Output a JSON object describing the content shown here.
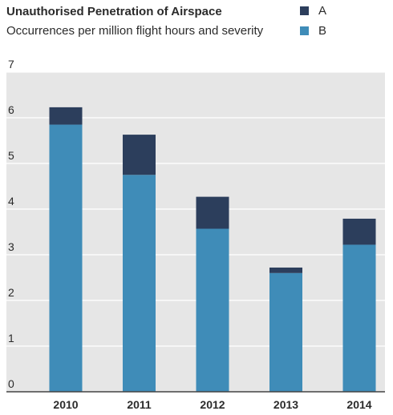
{
  "chart_data": {
    "type": "bar",
    "stacked": true,
    "title": "Unauthorised Penetration of Airspace",
    "subtitle": "Occurrences per million flight hours and severity",
    "xlabel": "",
    "ylabel": "",
    "categories": [
      "2010",
      "2011",
      "2012",
      "2013",
      "2014"
    ],
    "series": [
      {
        "name": "B",
        "color": "#3f8cb8",
        "values": [
          5.85,
          4.75,
          3.57,
          2.6,
          3.22
        ]
      },
      {
        "name": "A",
        "color": "#2c3e5c",
        "values": [
          0.38,
          0.88,
          0.7,
          0.12,
          0.57
        ]
      }
    ],
    "ylim": [
      0,
      7
    ],
    "yticks": [
      "0",
      "1",
      "2",
      "3",
      "4",
      "5",
      "6",
      "7"
    ],
    "grid": true,
    "legend_position": "top-right",
    "legend": [
      {
        "label": "A",
        "color": "#2c3e5c"
      },
      {
        "label": "B",
        "color": "#3f8cb8"
      }
    ],
    "plot_background": "#e6e6e6",
    "gridline_color": "#ffffff"
  }
}
